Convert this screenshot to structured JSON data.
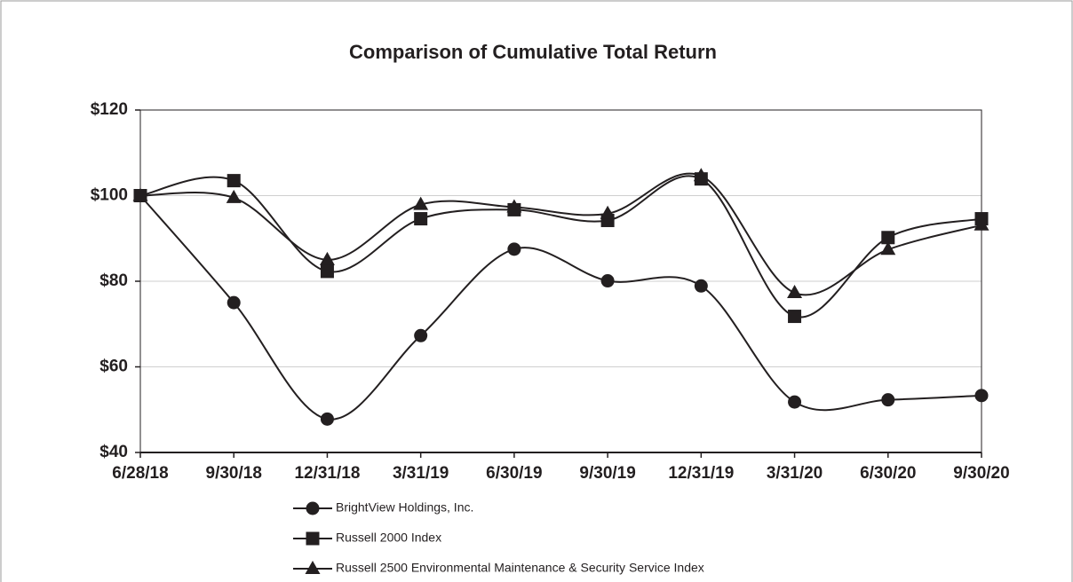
{
  "chart_data": {
    "type": "line",
    "title": "Comparison of Cumulative Total Return",
    "categories": [
      "6/28/18",
      "9/30/18",
      "12/31/18",
      "3/31/19",
      "6/30/19",
      "9/30/19",
      "12/31/19",
      "3/31/20",
      "6/30/20",
      "9/30/20"
    ],
    "series": [
      {
        "name": "BrightView Holdings, Inc.",
        "color": "#231f20",
        "marker": "circle",
        "values": [
          100,
          75,
          47.8,
          67.3,
          87.5,
          80.1,
          78.9,
          51.8,
          52.3,
          53.3
        ]
      },
      {
        "name": "Russell 2000 Index",
        "color": "#231f20",
        "marker": "square",
        "values": [
          100,
          103.5,
          82.3,
          94.6,
          96.7,
          94.2,
          103.9,
          71.8,
          90.2,
          94.6
        ]
      },
      {
        "name": "Russell 2500 Environmental Maintenance & Security Service Index",
        "color": "#231f20",
        "marker": "triangle",
        "values": [
          100,
          99.5,
          85,
          97.9,
          97.3,
          95.8,
          104.6,
          77.3,
          87.4,
          93.1
        ]
      }
    ],
    "ylim": [
      40,
      120
    ],
    "yticks": [
      {
        "value": 40,
        "label": "$40"
      },
      {
        "value": 60,
        "label": "$60"
      },
      {
        "value": 80,
        "label": "$80"
      },
      {
        "value": 100,
        "label": "$100"
      },
      {
        "value": 120,
        "label": "$120"
      }
    ],
    "grid": true,
    "smooth": true,
    "legend": "bottom"
  }
}
